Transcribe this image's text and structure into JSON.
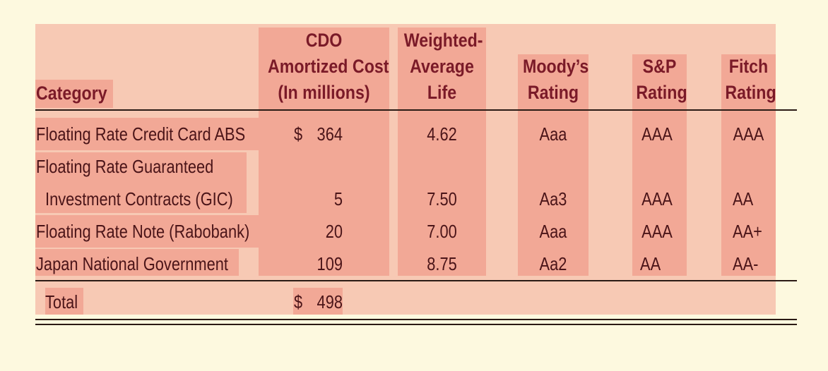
{
  "colors": {
    "page_bg": "#fdf9df",
    "panel_bg": "#f7c9b4",
    "highlight": "#f2a896",
    "header_text": "#7a1a28",
    "body_text": "#4a1418"
  },
  "table": {
    "headers": {
      "category": "Category",
      "cost": [
        "CDO",
        "Amortized Cost",
        "(In millions)"
      ],
      "wal": [
        "Weighted-",
        "Average",
        "Life"
      ],
      "moodys": [
        "Moody’s",
        "Rating"
      ],
      "sp": [
        "S&P",
        "Rating"
      ],
      "fitch": [
        "Fitch",
        "Rating"
      ]
    },
    "rows": [
      {
        "category": [
          "Floating Rate Credit Card ABS"
        ],
        "cost_symbol": "$",
        "cost": "364",
        "wal": "4.62",
        "moodys": "Aaa",
        "sp": "AAA",
        "fitch": "AAA"
      },
      {
        "category": [
          "Floating Rate Guaranteed",
          "Investment Contracts (GIC)"
        ],
        "cost_symbol": "",
        "cost": "5",
        "wal": "7.50",
        "moodys": "Aa3",
        "sp": "AAA",
        "fitch": "AA"
      },
      {
        "category": [
          "Floating Rate Note (Rabobank)"
        ],
        "cost_symbol": "",
        "cost": "20",
        "wal": "7.00",
        "moodys": "Aaa",
        "sp": "AAA",
        "fitch": "AA+"
      },
      {
        "category": [
          "Japan National Government"
        ],
        "cost_symbol": "",
        "cost": "109",
        "wal": "8.75",
        "moodys": "Aa2",
        "sp": "AA",
        "fitch": "AA-"
      }
    ],
    "total": {
      "label": "Total",
      "cost_symbol": "$",
      "cost": "498"
    }
  }
}
